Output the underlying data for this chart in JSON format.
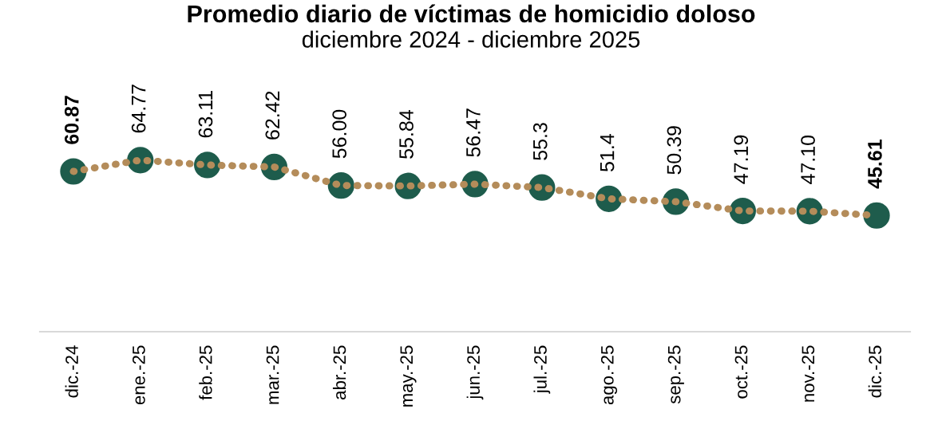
{
  "chart_data": {
    "type": "line",
    "title": "Promedio diario de víctimas de homicidio doloso",
    "subtitle": "diciembre 2024 - diciembre 2025",
    "categories": [
      "dic.-24",
      "ene.-25",
      "feb.-25",
      "mar.-25",
      "abr.-25",
      "may.-25",
      "jun.-25",
      "jul.-25",
      "ago.-25",
      "sep.-25",
      "oct.-25",
      "nov.-25",
      "dic.-25"
    ],
    "series": [
      {
        "type": "scatter",
        "color": "#1e5c4c",
        "marker": "circle",
        "data_labels": true,
        "values": [
          60.87,
          64.77,
          63.11,
          62.42,
          56.0,
          55.84,
          56.47,
          55.3,
          51.4,
          50.39,
          47.19,
          47.1,
          45.61
        ],
        "value_labels": [
          "60.87",
          "64.77",
          "63.11",
          "62.42",
          "56.00",
          "55.84",
          "56.47",
          "55.3",
          "51.4",
          "50.39",
          "47.19",
          "47.10",
          "45.61"
        ]
      },
      {
        "color": "#b48c5a",
        "line_style": "dotted",
        "values": [
          60.87,
          64.77,
          63.11,
          62.42,
          56.0,
          55.84,
          56.47,
          55.3,
          51.4,
          50.39,
          47.19,
          47.1,
          45.61
        ]
      }
    ],
    "grid": false,
    "legend": false
  }
}
